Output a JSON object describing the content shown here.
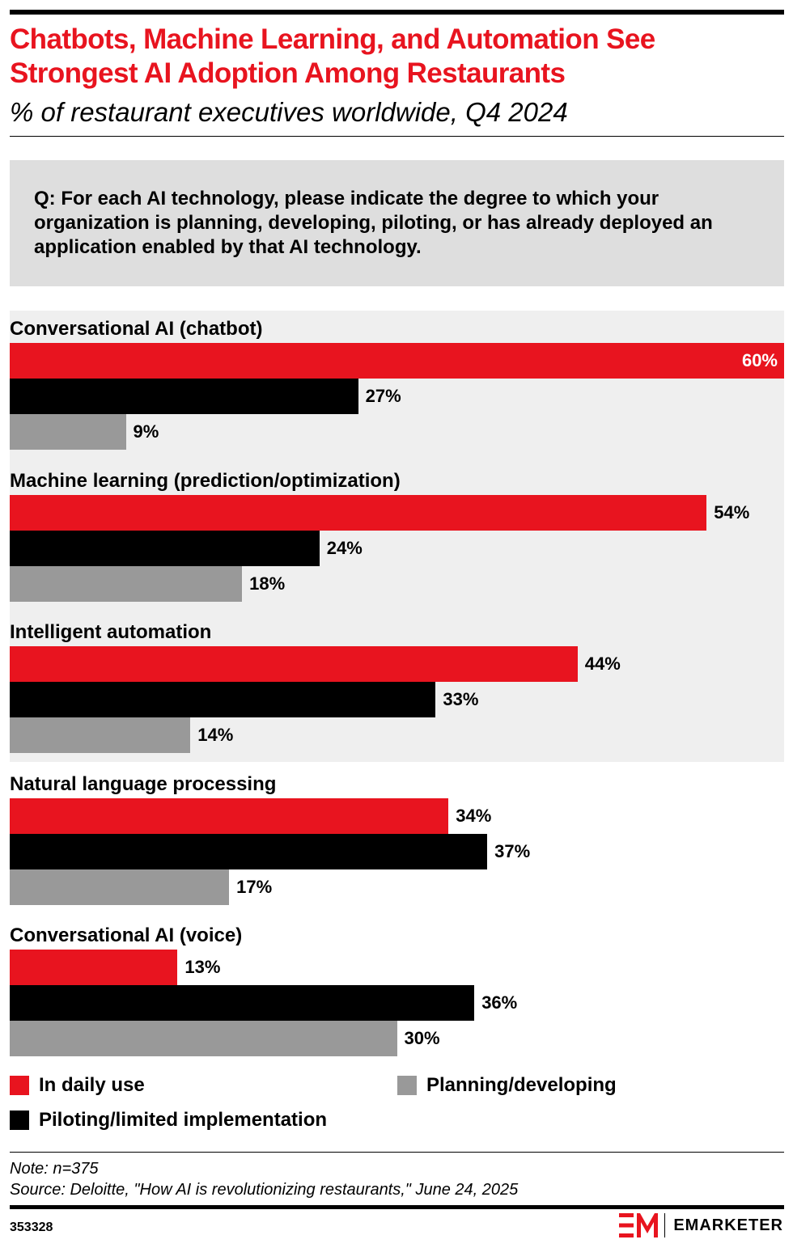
{
  "header": {
    "title": "Chatbots, Machine Learning, and Automation See Strongest AI Adoption Among Restaurants",
    "subtitle": "% of restaurant executives worldwide, Q4 2024"
  },
  "question": "Q: For each AI technology, please indicate the degree to which your organization is planning, developing, piloting, or has already deployed an application enabled by that AI technology.",
  "colors": {
    "accent": "#e8141f",
    "in_daily_use": "#e8141f",
    "piloting": "#000000",
    "planning": "#999999",
    "band": "#efefef",
    "question_box": "#dedede"
  },
  "chart_data": {
    "type": "bar",
    "orientation": "horizontal",
    "categories": [
      "Conversational AI (chatbot)",
      "Machine learning (prediction/optimization)",
      "Intelligent automation",
      "Natural language processing",
      "Conversational AI (voice)"
    ],
    "series": [
      {
        "name": "In daily use",
        "values": [
          60,
          54,
          44,
          34,
          13
        ]
      },
      {
        "name": "Piloting/limited implementation",
        "values": [
          27,
          24,
          33,
          37,
          36
        ]
      },
      {
        "name": "Planning/developing",
        "values": [
          9,
          18,
          14,
          17,
          30
        ]
      }
    ],
    "value_suffix": "%",
    "xlim": [
      0,
      60
    ],
    "grid": false,
    "legend_position": "bottom"
  },
  "legend": [
    {
      "label": "In daily use",
      "series": 0
    },
    {
      "label": "Planning/developing",
      "series": 2
    },
    {
      "label": "Piloting/limited implementation",
      "series": 1
    }
  ],
  "footer": {
    "note": "Note: n=375",
    "source": "Source: Deloitte, \"How AI is revolutionizing restaurants,\" June 24, 2025",
    "chart_id": "353328",
    "brand": "EMARKETER"
  }
}
